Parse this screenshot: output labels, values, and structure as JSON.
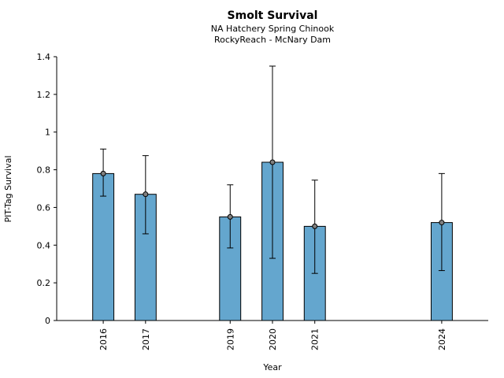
{
  "chart_data": {
    "type": "bar",
    "title": "Smolt Survival",
    "subtitle_line1": "NA Hatchery Spring Chinook",
    "subtitle_line2": "RockyReach - McNary Dam",
    "xlabel": "Year",
    "ylabel": "PIT-Tag Survival",
    "categories": [
      "2016",
      "2017",
      "2019",
      "2020",
      "2021",
      "2024"
    ],
    "x_years": [
      2016,
      2017,
      2019,
      2020,
      2021,
      2024
    ],
    "values": [
      0.78,
      0.67,
      0.55,
      0.84,
      0.5,
      0.52
    ],
    "error_low": [
      0.66,
      0.46,
      0.385,
      0.33,
      0.25,
      0.265
    ],
    "error_high": [
      0.91,
      0.875,
      0.72,
      1.35,
      0.745,
      0.78
    ],
    "yticks": [
      "0",
      "0.2",
      "0.4",
      "0.6",
      "0.8",
      "1",
      "1.2",
      "1.4"
    ],
    "ytick_values": [
      0,
      0.2,
      0.4,
      0.6,
      0.8,
      1.0,
      1.2,
      1.4
    ],
    "ylim": [
      0,
      1.4
    ],
    "xlim": [
      2014.9,
      2025.1
    ],
    "bar_width_years": 0.5,
    "grid": "off",
    "legend": "none",
    "bar_fill_color": "#64a6ce",
    "bar_edge_color": "#000000",
    "error_bar_color": "#000000",
    "marker_fill_color": "#808080",
    "marker_edge_color": "#000000"
  }
}
